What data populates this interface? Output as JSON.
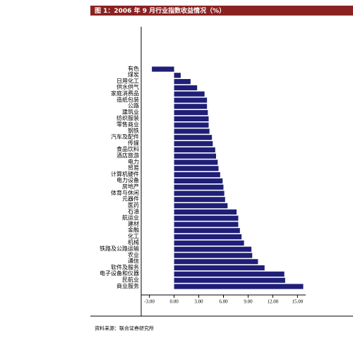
{
  "chart_data": {
    "type": "barh",
    "title": "图 1：2006 年 9 月行业指数收益情况（%）",
    "source": "资料来源：联合证券研究所",
    "categories": [
      "有色",
      "煤炭",
      "日用化工",
      "供水供气",
      "家庭消费品",
      "造纸包装",
      "公路",
      "建筑业",
      "纺织服装",
      "零售商业",
      "钢铁",
      "汽车及配件",
      "传媒",
      "食品饮料",
      "酒店旅游",
      "电力",
      "贸易",
      "计算机硬件",
      "电力设备",
      "房地产",
      "体育与休闲",
      "元器件",
      "医药",
      "石油",
      "航运业",
      "建材",
      "金融",
      "化工",
      "机械",
      "铁路及公路运输",
      "农业",
      "通信",
      "软件及服务",
      "电子设备和仪器",
      "民航业",
      "商业服务"
    ],
    "values": [
      -2.7,
      0.8,
      2.0,
      2.8,
      3.7,
      4.0,
      4.0,
      4.1,
      4.2,
      4.2,
      4.3,
      4.6,
      4.7,
      5.0,
      5.1,
      5.3,
      5.4,
      5.6,
      5.9,
      6.0,
      6.1,
      6.2,
      6.5,
      7.6,
      7.8,
      7.8,
      8.0,
      8.2,
      8.5,
      9.4,
      9.5,
      10.2,
      11.0,
      13.4,
      13.5,
      15.7
    ],
    "color": "#1f1f78",
    "xlim": [
      -4,
      16
    ],
    "xticks": [
      {
        "value": -3,
        "label": "-3.00"
      },
      {
        "value": 0,
        "label": "0.00"
      },
      {
        "value": 3,
        "label": "3.00"
      },
      {
        "value": 6,
        "label": "6.00"
      },
      {
        "value": 9,
        "label": "9.00"
      },
      {
        "value": 12,
        "label": "12.00"
      },
      {
        "value": 15,
        "label": "15.00"
      }
    ]
  }
}
